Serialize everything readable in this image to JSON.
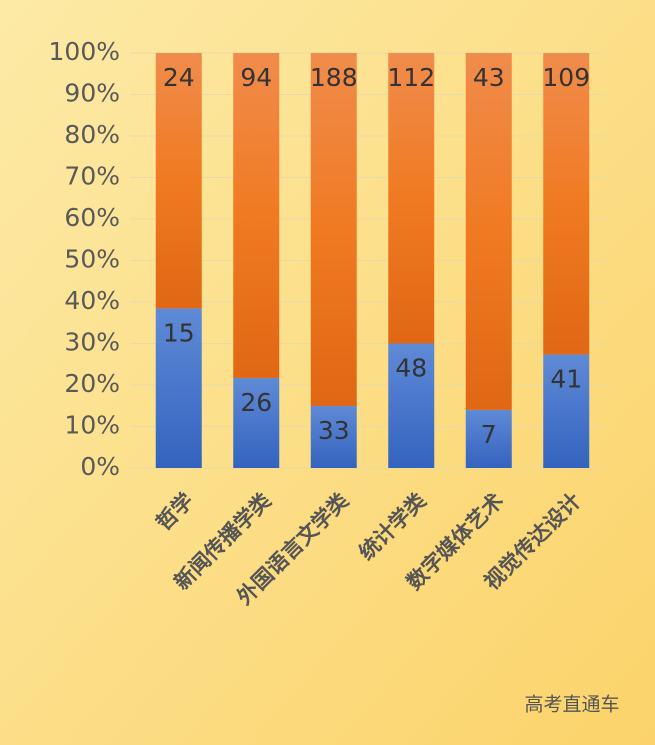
{
  "chart_data": {
    "type": "bar",
    "stacking": "percent",
    "categories": [
      "哲学",
      "新闻传播学类",
      "外国语言文学类",
      "统计学类",
      "数字媒体艺术",
      "视觉传达设计"
    ],
    "series": [
      {
        "color": "#4472c4",
        "values": [
          15,
          26,
          33,
          48,
          7,
          41
        ]
      },
      {
        "color": "#ed7d31",
        "values": [
          24,
          94,
          188,
          112,
          43,
          109
        ]
      }
    ],
    "ylim": [
      0,
      100
    ],
    "yticks": [
      {
        "value": 0,
        "label": "0%"
      },
      {
        "value": 10,
        "label": "10%"
      },
      {
        "value": 20,
        "label": "20%"
      },
      {
        "value": 30,
        "label": "30%"
      },
      {
        "value": 40,
        "label": "40%"
      },
      {
        "value": 50,
        "label": "50%"
      },
      {
        "value": 60,
        "label": "60%"
      },
      {
        "value": 70,
        "label": "70%"
      },
      {
        "value": 80,
        "label": "80%"
      },
      {
        "value": 90,
        "label": "90%"
      },
      {
        "value": 100,
        "label": "100%"
      }
    ],
    "grid": true,
    "watermark": "高考直通车"
  }
}
